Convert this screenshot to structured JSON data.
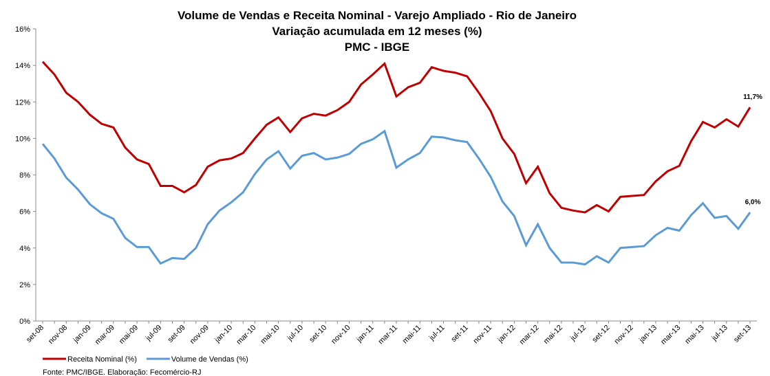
{
  "chart_data": {
    "type": "line",
    "title": "Volume de Vendas e Receita Nominal - Varejo Ampliado - Rio de Janeiro",
    "subtitle": [
      "Variação acumulada em 12 meses  (%)",
      "PMC - IBGE"
    ],
    "categories": [
      "set-08",
      null,
      "nov-08",
      null,
      "jan-09",
      null,
      "mar-09",
      null,
      "mai-09",
      null,
      "jul-09",
      null,
      "set-09",
      null,
      "nov-09",
      null,
      "jan-10",
      null,
      "mar-10",
      null,
      "mai-10",
      null,
      "jul-10",
      null,
      "set-10",
      null,
      "nov-10",
      null,
      "jan-11",
      null,
      "mar-11",
      null,
      "mai-11",
      null,
      "jul-11",
      null,
      "set-11",
      null,
      "nov-11",
      null,
      "jan-12",
      null,
      "mar-12",
      null,
      "mai-12",
      null,
      "jul-12",
      null,
      "set-12",
      null,
      "nov-12",
      null,
      "jan-13",
      null,
      "mar-13",
      null,
      "mai-13",
      null,
      "jul-13",
      null,
      "set-13"
    ],
    "series": [
      {
        "name": "Receita Nominal (%)",
        "color": "#c00000",
        "values": [
          14.2,
          13.5,
          12.5,
          12.0,
          11.3,
          10.8,
          10.6,
          9.5,
          8.85,
          8.6,
          7.4,
          7.4,
          7.05,
          7.45,
          8.45,
          8.8,
          8.9,
          9.2,
          10.0,
          10.75,
          11.15,
          10.35,
          11.1,
          11.35,
          11.25,
          11.55,
          12.0,
          12.95,
          13.5,
          14.1,
          12.3,
          12.8,
          13.05,
          13.9,
          13.7,
          13.6,
          13.4,
          12.5,
          11.5,
          10.0,
          9.15,
          7.55,
          8.45,
          7.0,
          6.2,
          6.05,
          5.95,
          6.35,
          6.0,
          6.8,
          6.85,
          6.9,
          7.65,
          8.2,
          8.5,
          9.85,
          10.9,
          10.6,
          11.05,
          10.65,
          11.7
        ],
        "value_labels": [
          null,
          null,
          null,
          null,
          null,
          null,
          null,
          null,
          null,
          null,
          null,
          null,
          null,
          null,
          null,
          null,
          null,
          null,
          null,
          null,
          null,
          null,
          null,
          null,
          null,
          null,
          null,
          null,
          null,
          null,
          null,
          null,
          null,
          null,
          null,
          null,
          null,
          null,
          null,
          null,
          null,
          null,
          null,
          null,
          null,
          null,
          null,
          null,
          null,
          null,
          null,
          null,
          null,
          null,
          null,
          null,
          null,
          null,
          null,
          null,
          "11,7%"
        ]
      },
      {
        "name": "Volume de Vendas (%)",
        "color": "#5b9bd5",
        "values": [
          9.7,
          8.9,
          7.85,
          7.2,
          6.4,
          5.9,
          5.6,
          4.55,
          4.05,
          4.05,
          3.15,
          3.45,
          3.4,
          4.0,
          5.3,
          6.05,
          6.5,
          7.05,
          8.05,
          8.85,
          9.3,
          8.35,
          9.05,
          9.2,
          8.85,
          8.95,
          9.15,
          9.7,
          9.95,
          10.4,
          8.4,
          8.85,
          9.2,
          10.1,
          10.05,
          9.9,
          9.8,
          8.9,
          7.9,
          6.55,
          5.75,
          4.15,
          5.3,
          4.0,
          3.2,
          3.2,
          3.1,
          3.55,
          3.2,
          4.0,
          4.05,
          4.1,
          4.7,
          5.1,
          4.95,
          5.8,
          6.45,
          5.65,
          5.75,
          5.05,
          5.95
        ],
        "value_labels": [
          null,
          null,
          null,
          null,
          null,
          null,
          null,
          null,
          null,
          null,
          null,
          null,
          null,
          null,
          null,
          null,
          null,
          null,
          null,
          null,
          null,
          null,
          null,
          null,
          null,
          null,
          null,
          null,
          null,
          null,
          null,
          null,
          null,
          null,
          null,
          null,
          null,
          null,
          null,
          null,
          null,
          null,
          null,
          null,
          null,
          null,
          null,
          null,
          null,
          null,
          null,
          null,
          null,
          null,
          null,
          null,
          null,
          null,
          null,
          null,
          "6,0%"
        ]
      }
    ],
    "ylim": [
      0,
      16
    ],
    "yticks": [
      {
        "value": 0,
        "label": "0%"
      },
      {
        "value": 2,
        "label": "2%"
      },
      {
        "value": 4,
        "label": "4%"
      },
      {
        "value": 6,
        "label": "6%"
      },
      {
        "value": 8,
        "label": "8%"
      },
      {
        "value": 10,
        "label": "10%"
      },
      {
        "value": 12,
        "label": "12%"
      },
      {
        "value": 14,
        "label": "14%"
      },
      {
        "value": 16,
        "label": "16%"
      }
    ],
    "grid": false,
    "legend": "bottom",
    "source": "Fonte: PMC/IBGE. Elaboração: Fecomércio-RJ"
  }
}
